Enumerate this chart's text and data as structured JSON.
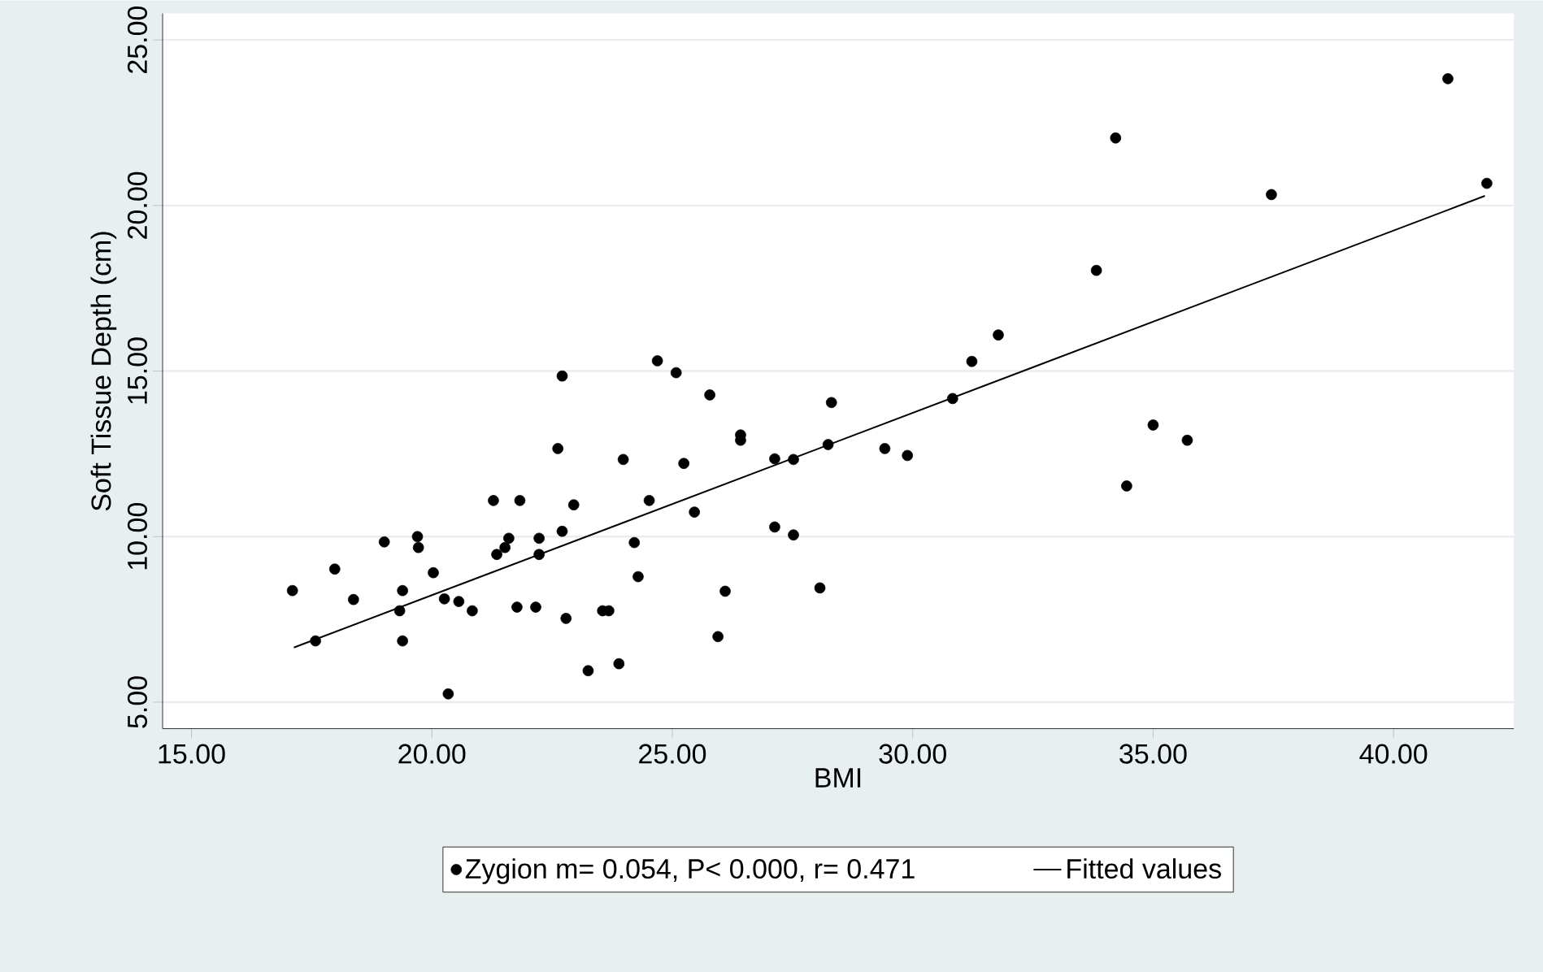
{
  "chart_data": {
    "type": "scatter",
    "xlabel": "BMI",
    "ylabel": "Soft Tissue Depth (cm)",
    "xlim": [
      14.4,
      42.5
    ],
    "ylim": [
      4.2,
      25.8
    ],
    "xticks": [
      {
        "value": 15,
        "label": "15.00"
      },
      {
        "value": 20,
        "label": "20.00"
      },
      {
        "value": 25,
        "label": "25.00"
      },
      {
        "value": 30,
        "label": "30.00"
      },
      {
        "value": 35,
        "label": "35.00"
      },
      {
        "value": 40,
        "label": "40.00"
      }
    ],
    "yticks": [
      {
        "value": 5,
        "label": "5.00"
      },
      {
        "value": 10,
        "label": "10.00"
      },
      {
        "value": 15,
        "label": "15.00"
      },
      {
        "value": 20,
        "label": "20.00"
      },
      {
        "value": 25,
        "label": "25.00"
      }
    ],
    "grid": "y",
    "legend": "bottom",
    "series": [
      {
        "name": "Zygion m= 0.054, P< 0.000, r= 0.471",
        "color": "#000000",
        "marker": "circle",
        "x": [
          17.1,
          17.58,
          17.98,
          18.37,
          19.01,
          19.39,
          19.33,
          19.39,
          19.7,
          19.72,
          20.03,
          20.34,
          20.26,
          20.56,
          20.84,
          21.28,
          21.83,
          21.35,
          21.6,
          21.52,
          21.77,
          22.16,
          22.23,
          22.23,
          22.62,
          22.71,
          22.71,
          22.79,
          22.95,
          23.25,
          23.55,
          23.68,
          23.89,
          23.98,
          24.21,
          24.29,
          24.52,
          24.69,
          25.08,
          25.24,
          25.46,
          25.78,
          26.1,
          25.95,
          26.42,
          26.42,
          27.13,
          27.13,
          27.52,
          27.52,
          28.07,
          28.24,
          28.31,
          29.42,
          29.89,
          30.83,
          31.23,
          31.78,
          33.82,
          34.22,
          34.45,
          35.0,
          35.71,
          37.46,
          41.13,
          41.94
        ],
        "values": [
          8.37,
          6.85,
          9.02,
          8.1,
          9.84,
          8.37,
          7.76,
          6.85,
          10.0,
          9.67,
          8.91,
          5.25,
          8.12,
          8.04,
          7.76,
          11.09,
          11.09,
          9.46,
          9.95,
          9.67,
          7.87,
          7.87,
          9.95,
          9.46,
          12.66,
          14.85,
          10.16,
          7.53,
          10.96,
          5.95,
          7.76,
          7.76,
          6.16,
          12.33,
          9.82,
          8.79,
          11.09,
          15.31,
          14.95,
          12.21,
          10.74,
          14.28,
          8.35,
          6.98,
          13.07,
          12.91,
          12.35,
          10.29,
          12.33,
          10.05,
          8.45,
          12.78,
          14.05,
          12.66,
          12.45,
          14.17,
          15.29,
          16.09,
          18.04,
          22.04,
          11.53,
          13.37,
          12.91,
          20.33,
          23.83,
          20.67
        ]
      },
      {
        "name": "Fitted values",
        "type": "line",
        "color": "#000000",
        "marker": "none",
        "line_style": "solid",
        "x": [
          17.13,
          41.9
        ],
        "values": [
          6.65,
          20.29
        ]
      }
    ]
  }
}
